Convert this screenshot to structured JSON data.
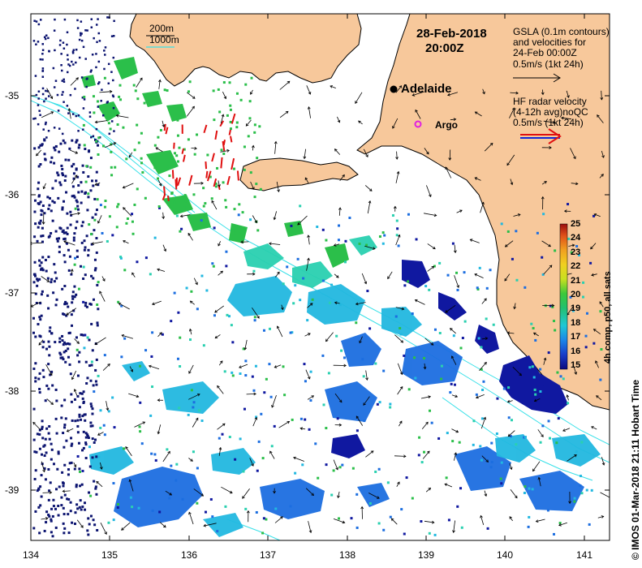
{
  "map": {
    "date": "28-Feb-2018",
    "time": "20:00Z",
    "place_labels": {
      "city": "Adelaide",
      "argo": "Argo"
    },
    "x_ticks": [
      "134",
      "135",
      "136",
      "137",
      "138",
      "139",
      "140",
      "141"
    ],
    "y_ticks": [
      "-35",
      "-36",
      "-37",
      "-38",
      "-39"
    ],
    "contour_legend": {
      "line1": "200m",
      "line2": "1000m"
    },
    "gsla_legend": {
      "line1": "GSLA (0.1m contours)",
      "line2": "and velocities for",
      "line3": "24-Feb 00:00Z",
      "line4": "0.5m/s (1kt 24h)"
    },
    "hf_legend": {
      "line1": "HF radar velocity",
      "line2": "(4-12h avg)noQC",
      "line3": "0.5m/s (1kt 24h)"
    },
    "colorbar": {
      "title": "4h comp, p50, all sats",
      "ticks": [
        "25",
        "24",
        "23",
        "22",
        "21",
        "20",
        "19",
        "18",
        "17",
        "16",
        "15"
      ]
    },
    "credit": "© IMOS 01-Mar-2018 21:11 Hobart Time",
    "colors": {
      "land": "#f7c89b",
      "contour": "#38e0e8",
      "argo": "#e020e0"
    }
  }
}
